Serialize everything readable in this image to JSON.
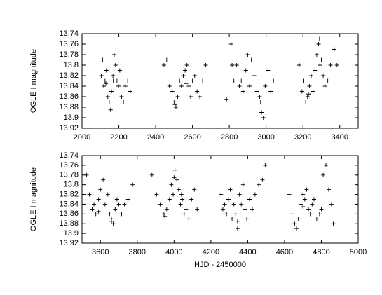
{
  "chart_data": [
    {
      "type": "scatter",
      "ylabel": "OGLE I magnitude",
      "color": "#000000",
      "y_inverted": true,
      "grid": false,
      "xlim": [
        2000,
        3500
      ],
      "xticks": [
        2000,
        2200,
        2400,
        2600,
        2800,
        3000,
        3200,
        3400
      ],
      "ylim": [
        13.74,
        13.92
      ],
      "yticks": [
        13.74,
        13.76,
        13.78,
        13.8,
        13.82,
        13.84,
        13.86,
        13.88,
        13.9,
        13.92
      ],
      "series": [
        {
          "x": [
            2105,
            2112,
            2118,
            2125,
            2132,
            2140,
            2148,
            2155,
            2160,
            2168,
            2175,
            2182,
            2190,
            2198,
            2205,
            2215,
            2225,
            2235,
            2248,
            2262,
            2130,
            2170,
            2445,
            2460,
            2475,
            2490,
            2500,
            2510,
            2520,
            2530,
            2540,
            2550,
            2560,
            2570,
            2580,
            2590,
            2600,
            2612,
            2625,
            2640,
            2655,
            2672,
            2505,
            2565,
            2785,
            2810,
            2825,
            2840,
            2855,
            2865,
            2875,
            2890,
            2900,
            2910,
            2920,
            2935,
            2950,
            2965,
            2975,
            2985,
            2995,
            3010,
            3025,
            3040,
            2815,
            2970,
            3180,
            3195,
            3205,
            3215,
            3225,
            3235,
            3245,
            3255,
            3265,
            3275,
            3285,
            3292,
            3300,
            3310,
            3320,
            3335,
            3350,
            3370,
            3385,
            3395,
            3290,
            3230
          ],
          "values": [
            13.82,
            13.79,
            13.84,
            13.83,
            13.81,
            13.86,
            13.87,
            13.885,
            13.85,
            13.82,
            13.78,
            13.8,
            13.83,
            13.84,
            13.81,
            13.86,
            13.87,
            13.84,
            13.83,
            13.85,
            13.835,
            13.83,
            13.8,
            13.79,
            13.84,
            13.85,
            13.87,
            13.88,
            13.86,
            13.83,
            13.84,
            13.82,
            13.81,
            13.8,
            13.84,
            13.86,
            13.83,
            13.82,
            13.85,
            13.86,
            13.83,
            13.8,
            13.875,
            13.835,
            13.865,
            13.76,
            13.83,
            13.8,
            13.84,
            13.83,
            13.85,
            13.81,
            13.78,
            13.84,
            13.79,
            13.82,
            13.85,
            13.86,
            13.89,
            13.9,
            13.84,
            13.81,
            13.85,
            13.83,
            13.8,
            13.87,
            13.8,
            13.85,
            13.83,
            13.87,
            13.86,
            13.84,
            13.82,
            13.85,
            13.81,
            13.78,
            13.76,
            13.8,
            13.79,
            13.82,
            13.84,
            13.83,
            13.8,
            13.77,
            13.8,
            13.79,
            13.75,
            13.855
          ]
        }
      ]
    },
    {
      "type": "scatter",
      "ylabel": "OGLE I magnitude",
      "xlabel": "HJD - 2450000",
      "color": "#000000",
      "y_inverted": true,
      "grid": false,
      "xlim": [
        3500,
        5000
      ],
      "xticks": [
        3600,
        3800,
        4000,
        4200,
        4400,
        4600,
        4800,
        5000
      ],
      "ylim": [
        13.74,
        13.92
      ],
      "yticks": [
        13.74,
        13.76,
        13.78,
        13.8,
        13.82,
        13.84,
        13.86,
        13.88,
        13.9,
        13.92
      ],
      "series": [
        {
          "x": [
            3525,
            3540,
            3555,
            3565,
            3575,
            3590,
            3600,
            3615,
            3625,
            3640,
            3650,
            3660,
            3670,
            3680,
            3690,
            3700,
            3715,
            3730,
            3750,
            3775,
            3590,
            3660,
            3880,
            3905,
            3925,
            3945,
            3960,
            3975,
            3985,
            3995,
            4005,
            4015,
            4025,
            4035,
            4045,
            4055,
            4065,
            4080,
            4095,
            4110,
            4125,
            4040,
            4000,
            3950,
            4255,
            4265,
            4275,
            4285,
            4295,
            4305,
            4315,
            4325,
            4335,
            4345,
            4355,
            4365,
            4375,
            4385,
            4395,
            4410,
            4425,
            4440,
            4460,
            4480,
            4495,
            4345,
            4625,
            4640,
            4655,
            4665,
            4675,
            4690,
            4700,
            4710,
            4720,
            4730,
            4740,
            4750,
            4760,
            4775,
            4790,
            4800,
            4810,
            4825,
            4840,
            4855,
            4865,
            4700
          ],
          "values": [
            13.78,
            13.82,
            13.85,
            13.84,
            13.86,
            13.83,
            13.81,
            13.79,
            13.84,
            13.82,
            13.86,
            13.87,
            13.88,
            13.85,
            13.83,
            13.84,
            13.86,
            13.84,
            13.83,
            13.8,
            13.855,
            13.875,
            13.78,
            13.82,
            13.84,
            13.86,
            13.85,
            13.83,
            13.8,
            13.82,
            13.77,
            13.79,
            13.81,
            13.84,
            13.83,
            13.86,
            13.85,
            13.87,
            13.83,
            13.81,
            13.85,
            13.82,
            13.785,
            13.865,
            13.82,
            13.85,
            13.84,
            13.86,
            13.83,
            13.81,
            13.87,
            13.84,
            13.86,
            13.89,
            13.82,
            13.84,
            13.8,
            13.85,
            13.87,
            13.83,
            13.85,
            13.82,
            13.8,
            13.79,
            13.76,
            13.875,
            13.82,
            13.86,
            13.88,
            13.89,
            13.87,
            13.84,
            13.82,
            13.83,
            13.81,
            13.85,
            13.86,
            13.84,
            13.83,
            13.87,
            13.86,
            13.85,
            13.78,
            13.76,
            13.81,
            13.84,
            13.88,
            13.845
          ]
        }
      ]
    }
  ]
}
